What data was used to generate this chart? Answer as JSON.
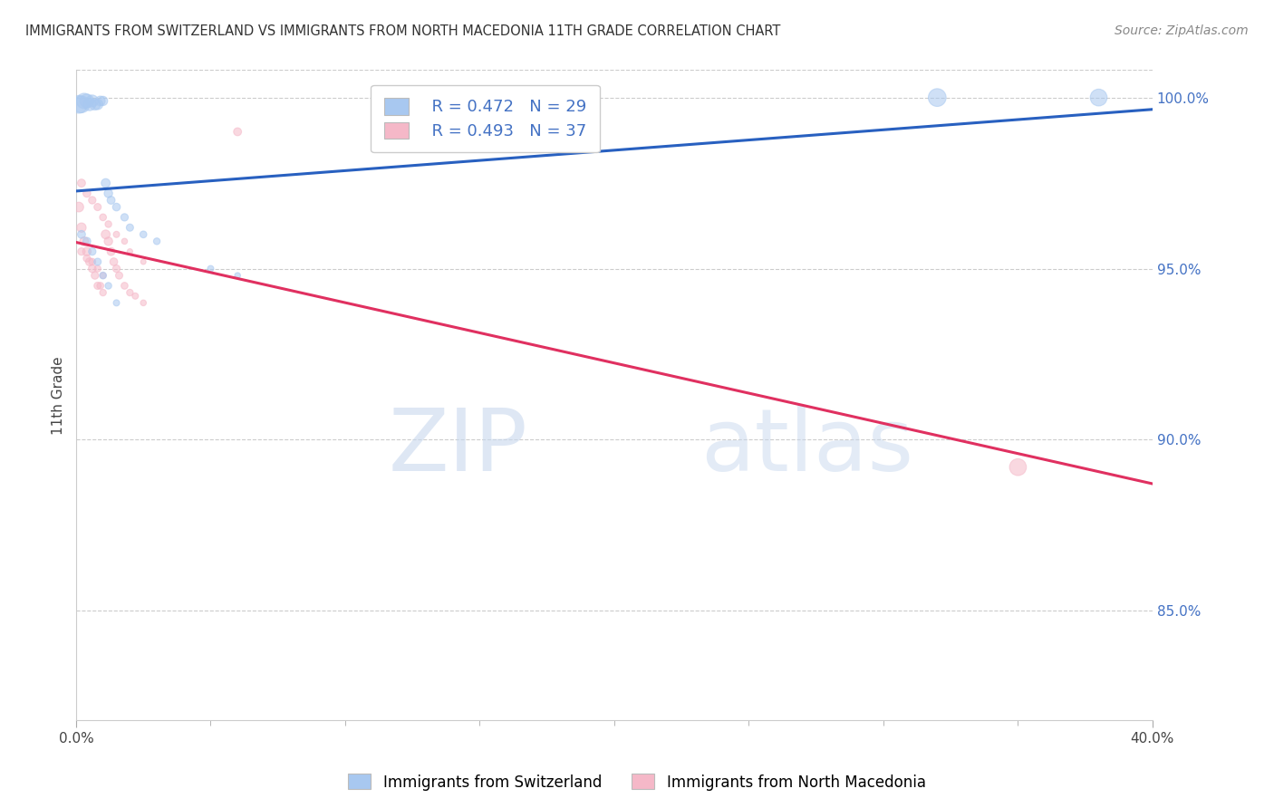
{
  "title": "IMMIGRANTS FROM SWITZERLAND VS IMMIGRANTS FROM NORTH MACEDONIA 11TH GRADE CORRELATION CHART",
  "source": "Source: ZipAtlas.com",
  "ylabel": "11th Grade",
  "ylabel_right_ticks": [
    "100.0%",
    "95.0%",
    "90.0%",
    "85.0%"
  ],
  "ylabel_right_values": [
    1.0,
    0.95,
    0.9,
    0.85
  ],
  "xlim": [
    0.0,
    0.4
  ],
  "ylim": [
    0.818,
    1.008
  ],
  "legend_R_blue": "R = 0.472",
  "legend_N_blue": "N = 29",
  "legend_R_pink": "R = 0.493",
  "legend_N_pink": "N = 37",
  "blue_color": "#A8C8F0",
  "pink_color": "#F5B8C8",
  "trend_blue": "#2860C0",
  "trend_pink": "#E03060",
  "watermark_zip": "ZIP",
  "watermark_atlas": "atlas",
  "swiss_x": [
    0.001,
    0.002,
    0.003,
    0.004,
    0.005,
    0.006,
    0.007,
    0.008,
    0.009,
    0.01,
    0.011,
    0.012,
    0.013,
    0.015,
    0.018,
    0.02,
    0.025,
    0.03,
    0.05,
    0.06,
    0.002,
    0.004,
    0.006,
    0.008,
    0.01,
    0.012,
    0.015,
    0.32,
    0.38
  ],
  "swiss_y": [
    0.998,
    0.998,
    0.999,
    0.999,
    0.998,
    0.999,
    0.998,
    0.998,
    0.999,
    0.999,
    0.975,
    0.972,
    0.97,
    0.968,
    0.965,
    0.962,
    0.96,
    0.958,
    0.95,
    0.948,
    0.96,
    0.958,
    0.955,
    0.952,
    0.948,
    0.945,
    0.94,
    1.0,
    1.0
  ],
  "swiss_sizes": [
    200,
    180,
    150,
    120,
    100,
    90,
    80,
    70,
    60,
    55,
    50,
    45,
    40,
    38,
    35,
    33,
    30,
    28,
    25,
    22,
    40,
    38,
    35,
    33,
    30,
    28,
    25,
    200,
    180
  ],
  "mac_x": [
    0.001,
    0.002,
    0.003,
    0.004,
    0.005,
    0.006,
    0.007,
    0.008,
    0.009,
    0.01,
    0.011,
    0.012,
    0.013,
    0.014,
    0.015,
    0.016,
    0.018,
    0.02,
    0.022,
    0.025,
    0.002,
    0.004,
    0.006,
    0.008,
    0.01,
    0.012,
    0.015,
    0.018,
    0.02,
    0.025,
    0.002,
    0.004,
    0.006,
    0.008,
    0.01,
    0.06,
    0.35
  ],
  "mac_y": [
    0.968,
    0.962,
    0.958,
    0.955,
    0.952,
    0.95,
    0.948,
    0.945,
    0.945,
    0.943,
    0.96,
    0.958,
    0.955,
    0.952,
    0.95,
    0.948,
    0.945,
    0.943,
    0.942,
    0.94,
    0.975,
    0.972,
    0.97,
    0.968,
    0.965,
    0.963,
    0.96,
    0.958,
    0.955,
    0.952,
    0.955,
    0.953,
    0.952,
    0.95,
    0.948,
    0.99,
    0.892
  ],
  "mac_sizes": [
    60,
    55,
    50,
    45,
    40,
    38,
    35,
    33,
    30,
    28,
    50,
    45,
    40,
    38,
    35,
    33,
    30,
    28,
    25,
    22,
    40,
    38,
    35,
    33,
    30,
    28,
    25,
    22,
    20,
    18,
    35,
    33,
    30,
    28,
    25,
    40,
    180
  ]
}
